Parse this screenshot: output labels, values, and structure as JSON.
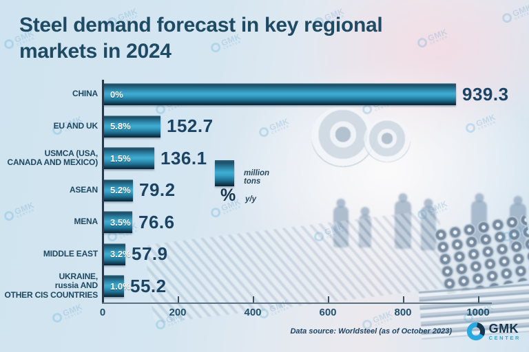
{
  "title": "Steel demand forecast in key regional\nmarkets in 2024",
  "chart_data": {
    "type": "bar",
    "orientation": "horizontal",
    "title": "Steel demand forecast in key regional markets in 2024",
    "categories": [
      "CHINA",
      "EU AND UK",
      "USMCA (USA,\nCANADA AND MEXICO)",
      "ASEAN",
      "MENA",
      "MIDDLE EAST",
      "UKRAINE,\nrussia AND\nOTHER CIS COUNTRIES"
    ],
    "values": [
      939.3,
      152.7,
      136.1,
      79.2,
      76.6,
      57.9,
      55.2
    ],
    "value_labels": [
      "939.3",
      "152.7",
      "136.1",
      "79.2",
      "76.6",
      "57.9",
      "55.2"
    ],
    "yoy_change_percent": [
      0,
      5.8,
      1.5,
      5.2,
      3.5,
      3.2,
      1.0
    ],
    "percent_labels": [
      "0%",
      "5.8%",
      "1.5%",
      "5.2%",
      "3.5%",
      "3.2%",
      "1.0%"
    ],
    "unit": "million tons",
    "xlabel": "",
    "ylabel": "",
    "xlim": [
      0,
      1000
    ],
    "x_ticks": [
      "0",
      "200",
      "400",
      "600",
      "800",
      "1000"
    ],
    "grid": false,
    "legend": {
      "bar_swatch_label": "million tons",
      "percent_symbol": "%",
      "percent_label": "y/y"
    },
    "legend_position": "center of plot area"
  },
  "footer": {
    "source": "Data source: Worldsteel (as of October 2023)"
  },
  "logo": {
    "brand": "GMK",
    "sub": "CENTER"
  },
  "watermark": {
    "brand": "GMK",
    "sub": "CENTER"
  },
  "colors": {
    "background": "#d3e4f0",
    "bar_mid": "#3aa7cc",
    "bar_dark": "#0e3346",
    "title_text": "#1e4a63",
    "value_text": "#1b4364",
    "percent_text": "#ffffff",
    "logo_cyan": "#2aa9e0",
    "logo_navy": "#16364f"
  }
}
